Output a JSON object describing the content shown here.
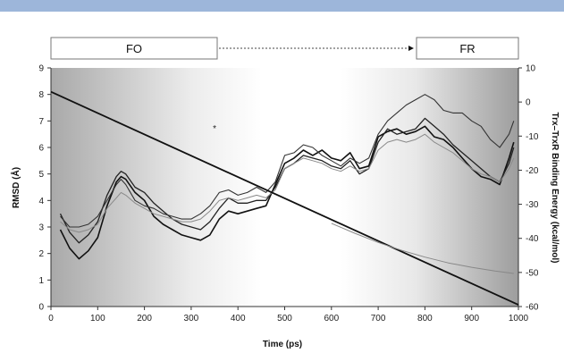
{
  "header": {
    "phase_start": "FO",
    "phase_end": "FR"
  },
  "chart_data": {
    "type": "line",
    "xlabel": "Time (ps)",
    "ylabel": "RMSD (Å)",
    "y2label": "Trx–TrxR Binding Energy (kcal/mol)",
    "xlim": [
      0,
      1000
    ],
    "ylim": [
      0,
      9
    ],
    "y2lim": [
      -60,
      10
    ],
    "x_ticks": [
      "0",
      "100",
      "200",
      "300",
      "400",
      "500",
      "600",
      "700",
      "800",
      "900",
      "1000"
    ],
    "y_ticks": [
      "0",
      "1",
      "2",
      "3",
      "4",
      "5",
      "6",
      "7",
      "8",
      "9"
    ],
    "y2_ticks": [
      "10",
      "0",
      "-10",
      "-20",
      "-30",
      "-40",
      "-50",
      "-60"
    ],
    "annotation": "*",
    "annotation_point": {
      "x": 350,
      "y": 6.6
    },
    "background": "gradient grey (left) to white (center) to grey (right)",
    "colors": {
      "dark": "#111111",
      "medium": "#333333",
      "light": "#888888"
    },
    "series": [
      {
        "axis": "left",
        "color": "#111111",
        "width": 1.6,
        "x": [
          20,
          40,
          60,
          80,
          100,
          120,
          140,
          150,
          160,
          180,
          200,
          220,
          240,
          260,
          280,
          300,
          320,
          340,
          360,
          380,
          400,
          420,
          440,
          460,
          480,
          500,
          520,
          540,
          560,
          580,
          600,
          620,
          640,
          660,
          680,
          700,
          720,
          740,
          760,
          780,
          800,
          820,
          840,
          860,
          880,
          900,
          920,
          940,
          960,
          980,
          990
        ],
        "values": [
          2.9,
          2.2,
          1.8,
          2.1,
          2.6,
          3.8,
          4.7,
          4.9,
          4.8,
          4.3,
          4.0,
          3.4,
          3.1,
          2.9,
          2.7,
          2.6,
          2.5,
          2.7,
          3.3,
          3.6,
          3.5,
          3.6,
          3.7,
          3.8,
          4.6,
          5.4,
          5.6,
          5.9,
          5.7,
          5.9,
          5.6,
          5.5,
          5.8,
          5.2,
          5.3,
          6.4,
          6.6,
          6.7,
          6.5,
          6.6,
          6.8,
          6.4,
          6.3,
          6.0,
          5.6,
          5.2,
          4.9,
          4.8,
          4.6,
          5.6,
          6.2
        ]
      },
      {
        "axis": "left",
        "color": "#222222",
        "width": 1.3,
        "x": [
          20,
          40,
          60,
          80,
          100,
          120,
          140,
          150,
          160,
          180,
          200,
          220,
          240,
          260,
          280,
          300,
          320,
          340,
          360,
          380,
          400,
          420,
          440,
          460,
          480,
          500,
          520,
          540,
          560,
          580,
          600,
          620,
          640,
          660,
          680,
          700,
          720,
          740,
          760,
          780,
          800,
          820,
          840,
          860,
          880,
          900,
          920,
          940,
          960,
          980,
          990
        ],
        "values": [
          3.5,
          2.8,
          2.4,
          2.7,
          3.2,
          4.2,
          4.9,
          5.1,
          5.0,
          4.5,
          4.3,
          3.9,
          3.6,
          3.3,
          3.1,
          3.0,
          2.9,
          3.2,
          3.7,
          4.1,
          3.9,
          3.9,
          4.0,
          4.0,
          4.5,
          5.2,
          5.4,
          5.7,
          5.6,
          5.5,
          5.3,
          5.2,
          5.5,
          5.0,
          5.2,
          6.2,
          6.7,
          6.5,
          6.6,
          6.7,
          7.1,
          6.8,
          6.5,
          6.1,
          5.8,
          5.5,
          5.2,
          4.9,
          4.7,
          5.4,
          6.0
        ]
      },
      {
        "axis": "left",
        "color": "#333333",
        "width": 1.1,
        "x": [
          20,
          40,
          60,
          80,
          100,
          120,
          140,
          150,
          160,
          180,
          200,
          220,
          240,
          260,
          280,
          300,
          320,
          340,
          360,
          380,
          400,
          420,
          440,
          460,
          480,
          500,
          520,
          540,
          560,
          580,
          600,
          620,
          640,
          660,
          680,
          700,
          720,
          740,
          760,
          780,
          800,
          820,
          840,
          860,
          880,
          900,
          920,
          940,
          960,
          980,
          990
        ],
        "values": [
          3.4,
          3.0,
          3.0,
          3.1,
          3.4,
          4.0,
          4.6,
          4.8,
          4.6,
          4.0,
          3.8,
          3.7,
          3.5,
          3.4,
          3.3,
          3.3,
          3.5,
          3.8,
          4.3,
          4.4,
          4.2,
          4.3,
          4.5,
          4.3,
          4.7,
          5.7,
          5.8,
          6.1,
          6.0,
          5.7,
          5.5,
          5.3,
          5.6,
          5.4,
          5.6,
          6.5,
          7.0,
          7.3,
          7.6,
          7.8,
          8.0,
          7.8,
          7.4,
          7.3,
          7.3,
          7.0,
          6.8,
          6.3,
          6.0,
          6.5,
          7.0
        ]
      },
      {
        "axis": "left",
        "color": "#8a8a8a",
        "width": 1.0,
        "x": [
          20,
          40,
          60,
          80,
          100,
          120,
          140,
          150,
          160,
          180,
          200,
          220,
          240,
          260,
          280,
          300,
          320,
          340,
          360,
          380,
          400,
          420,
          440,
          460,
          480,
          500,
          520,
          540,
          560,
          580,
          600,
          620,
          640,
          660,
          680,
          700,
          720,
          740,
          760,
          780,
          800,
          820,
          840,
          860,
          880,
          900,
          920,
          940,
          960,
          980,
          990
        ],
        "values": [
          3.2,
          2.9,
          2.8,
          2.9,
          3.1,
          3.7,
          4.1,
          4.3,
          4.2,
          3.9,
          3.7,
          3.5,
          3.4,
          3.3,
          3.2,
          3.2,
          3.3,
          3.6,
          4.0,
          4.1,
          4.0,
          4.1,
          4.2,
          4.1,
          4.4,
          5.2,
          5.4,
          5.6,
          5.5,
          5.4,
          5.2,
          5.1,
          5.3,
          5.1,
          5.2,
          5.9,
          6.2,
          6.3,
          6.2,
          6.3,
          6.5,
          6.2,
          6.0,
          5.8,
          5.5,
          5.2,
          5.0,
          4.9,
          4.7,
          5.2,
          5.6
        ]
      },
      {
        "axis": "right",
        "color": "#111111",
        "width": 1.8,
        "x": [
          0,
          1000
        ],
        "values": [
          3,
          -59.5
        ]
      },
      {
        "axis": "right",
        "color": "#888888",
        "width": 1.0,
        "x": [
          600,
          650,
          700,
          750,
          800,
          850,
          900,
          950,
          990
        ],
        "values": [
          -35.6,
          -38.5,
          -41.2,
          -43.5,
          -45.5,
          -47.2,
          -48.5,
          -49.6,
          -50.3
        ]
      }
    ]
  }
}
